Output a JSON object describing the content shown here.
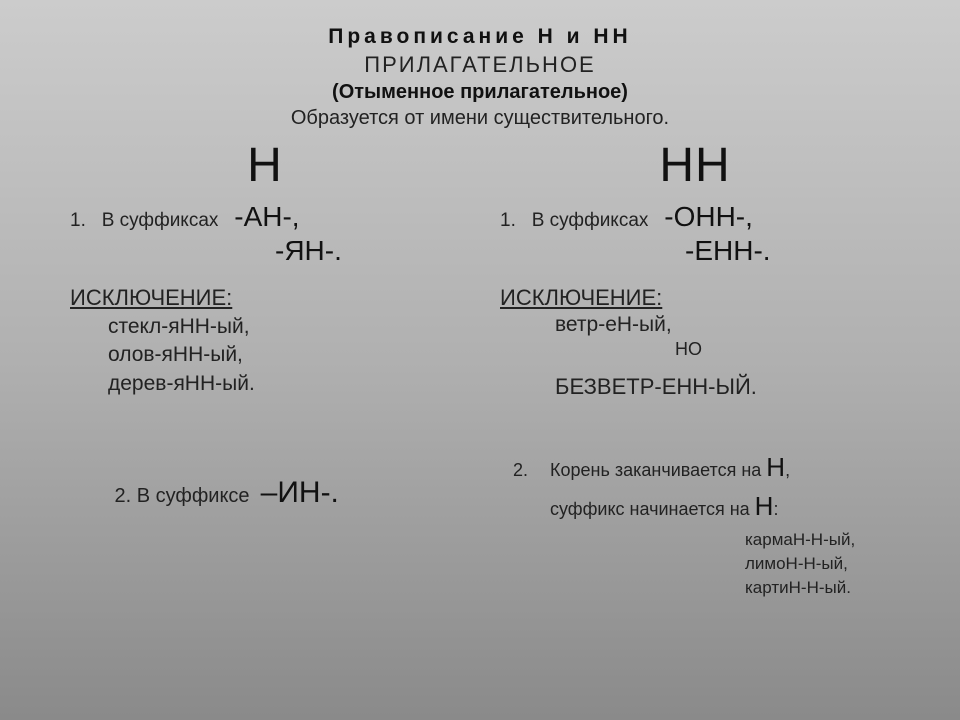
{
  "header": {
    "main": "Правописание   Н   и   НН",
    "sub1": "ПРИЛАГАТЕЛЬНОЕ",
    "sub2": "(Отыменное прилагательное)",
    "sub3": "Образуется от имени существительного."
  },
  "left": {
    "letter": "Н",
    "r1_num": "1.",
    "r1_text": "   В суффиксах   ",
    "r1_sfx1": "-АН-,",
    "r1_sfx2": "-ЯН-.",
    "excl": "ИСКЛЮЧЕНИЕ:",
    "ex1": "стекл-яНН-ый,",
    "ex2": "олов-яНН-ый,",
    "ex3": "дерев-яНН-ый.",
    "r2_pre": "2. В суффиксе  ",
    "r2_sfx": "–ИН-."
  },
  "right": {
    "letter": "НН",
    "r1_num": "1.",
    "r1_text": "   В суффиксах   ",
    "r1_sfx1": "-ОНН-,",
    "r1_sfx2": "-ЕНН-.",
    "excl": "ИСКЛЮЧЕНИЕ:",
    "ex1": "ветр-еН-ый,",
    "no": "НО",
    "bezv": "БЕЗВЕТР-ЕНН-ЫЙ.",
    "r2_num": "2.",
    "r2_l1a": "Корень заканчивается на ",
    "r2_l1b": "Н",
    "r2_l1c": ",",
    "r2_l2a": "суффикс начинается на ",
    "r2_l2b": "Н",
    "r2_l2c": ":",
    "e1": "кармаН-Н-ый,",
    "e2": "лимоН-Н-ый,",
    "e3": "картиН-Н-ый."
  },
  "colors": {
    "bg_top": "#cccccc",
    "bg_mid": "#b0b0b0",
    "bg_bot": "#8a8a8a",
    "text_dark": "#111111",
    "text_body": "#222222"
  }
}
